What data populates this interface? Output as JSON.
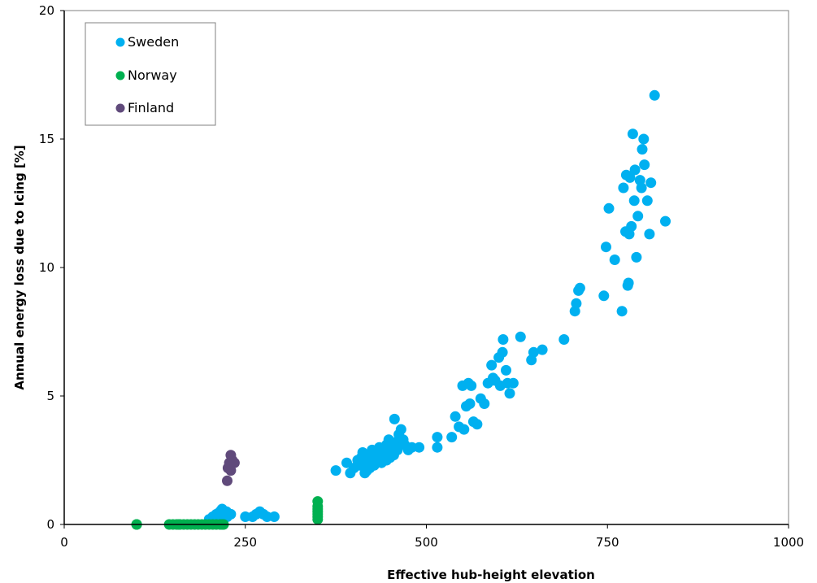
{
  "chart_data": {
    "type": "scatter",
    "xlabel": "Effective hub-height elevation",
    "ylabel": "Annual energy loss due to Icing [%]",
    "xlim": [
      0,
      1000
    ],
    "ylim": [
      0,
      20
    ],
    "xticks": [
      0,
      250,
      500,
      750,
      1000
    ],
    "yticks": [
      0,
      5,
      10,
      15,
      20
    ],
    "grid": false,
    "legend": "top-left",
    "series": [
      {
        "name": "Sweden",
        "color": "#00b0f0",
        "points": [
          [
            200,
            0.2
          ],
          [
            205,
            0.3
          ],
          [
            210,
            0.4
          ],
          [
            215,
            0.5
          ],
          [
            220,
            0.4
          ],
          [
            225,
            0.3
          ],
          [
            230,
            0.4
          ],
          [
            212,
            0.2
          ],
          [
            218,
            0.6
          ],
          [
            224,
            0.5
          ],
          [
            250,
            0.3
          ],
          [
            260,
            0.3
          ],
          [
            270,
            0.5
          ],
          [
            275,
            0.4
          ],
          [
            280,
            0.3
          ],
          [
            290,
            0.3
          ],
          [
            265,
            0.4
          ],
          [
            375,
            2.1
          ],
          [
            390,
            2.4
          ],
          [
            395,
            2.0
          ],
          [
            400,
            2.2
          ],
          [
            405,
            2.5
          ],
          [
            408,
            2.3
          ],
          [
            410,
            2.6
          ],
          [
            412,
            2.8
          ],
          [
            415,
            2.0
          ],
          [
            418,
            2.4
          ],
          [
            420,
            2.7
          ],
          [
            422,
            2.2
          ],
          [
            425,
            2.5
          ],
          [
            428,
            2.3
          ],
          [
            430,
            2.8
          ],
          [
            432,
            2.6
          ],
          [
            435,
            3.0
          ],
          [
            438,
            2.4
          ],
          [
            440,
            2.7
          ],
          [
            442,
            2.9
          ],
          [
            445,
            3.1
          ],
          [
            448,
            3.3
          ],
          [
            450,
            2.6
          ],
          [
            452,
            2.8
          ],
          [
            455,
            3.0
          ],
          [
            456,
            4.1
          ],
          [
            458,
            3.2
          ],
          [
            460,
            2.9
          ],
          [
            462,
            3.5
          ],
          [
            465,
            3.7
          ],
          [
            468,
            3.3
          ],
          [
            470,
            3.1
          ],
          [
            475,
            2.9
          ],
          [
            480,
            3.0
          ],
          [
            490,
            3.0
          ],
          [
            445,
            2.5
          ],
          [
            435,
            2.6
          ],
          [
            425,
            2.9
          ],
          [
            418,
            2.1
          ],
          [
            455,
            2.7
          ],
          [
            515,
            3.0
          ],
          [
            515,
            3.4
          ],
          [
            535,
            3.4
          ],
          [
            540,
            4.2
          ],
          [
            545,
            3.8
          ],
          [
            550,
            5.4
          ],
          [
            552,
            3.7
          ],
          [
            555,
            4.6
          ],
          [
            558,
            5.5
          ],
          [
            560,
            4.7
          ],
          [
            562,
            5.4
          ],
          [
            565,
            4.0
          ],
          [
            570,
            3.9
          ],
          [
            575,
            4.9
          ],
          [
            580,
            4.7
          ],
          [
            585,
            5.5
          ],
          [
            590,
            6.2
          ],
          [
            592,
            5.7
          ],
          [
            595,
            5.6
          ],
          [
            600,
            6.5
          ],
          [
            602,
            5.4
          ],
          [
            605,
            6.7
          ],
          [
            606,
            7.2
          ],
          [
            610,
            6.0
          ],
          [
            612,
            5.5
          ],
          [
            615,
            5.1
          ],
          [
            620,
            5.5
          ],
          [
            630,
            7.3
          ],
          [
            645,
            6.4
          ],
          [
            648,
            6.7
          ],
          [
            660,
            6.8
          ],
          [
            690,
            7.2
          ],
          [
            705,
            8.3
          ],
          [
            707,
            8.6
          ],
          [
            710,
            9.1
          ],
          [
            712,
            9.2
          ],
          [
            745,
            8.9
          ],
          [
            748,
            10.8
          ],
          [
            752,
            12.3
          ],
          [
            760,
            10.3
          ],
          [
            770,
            8.3
          ],
          [
            772,
            13.1
          ],
          [
            775,
            11.4
          ],
          [
            776,
            13.6
          ],
          [
            778,
            9.3
          ],
          [
            779,
            9.4
          ],
          [
            780,
            11.3
          ],
          [
            781,
            13.5
          ],
          [
            783,
            11.6
          ],
          [
            785,
            15.2
          ],
          [
            787,
            12.6
          ],
          [
            788,
            13.8
          ],
          [
            790,
            10.4
          ],
          [
            792,
            12.0
          ],
          [
            795,
            13.4
          ],
          [
            797,
            13.1
          ],
          [
            798,
            14.6
          ],
          [
            800,
            15.0
          ],
          [
            801,
            14.0
          ],
          [
            805,
            12.6
          ],
          [
            808,
            11.3
          ],
          [
            810,
            13.3
          ],
          [
            815,
            16.7
          ],
          [
            830,
            11.8
          ]
        ]
      },
      {
        "name": "Norway",
        "color": "#00b050",
        "points": [
          [
            100,
            0.0
          ],
          [
            100,
            0.0
          ],
          [
            145,
            0.0
          ],
          [
            150,
            0.0
          ],
          [
            155,
            0.0
          ],
          [
            158,
            0.0
          ],
          [
            160,
            0.0
          ],
          [
            165,
            0.0
          ],
          [
            170,
            0.0
          ],
          [
            175,
            0.0
          ],
          [
            180,
            0.0
          ],
          [
            185,
            0.0
          ],
          [
            190,
            0.0
          ],
          [
            195,
            0.0
          ],
          [
            200,
            0.0
          ],
          [
            205,
            0.0
          ],
          [
            210,
            0.0
          ],
          [
            215,
            0.0
          ],
          [
            218,
            0.0
          ],
          [
            220,
            0.0
          ],
          [
            350,
            0.2
          ],
          [
            350,
            0.3
          ],
          [
            350,
            0.4
          ],
          [
            350,
            0.5
          ],
          [
            350,
            0.6
          ],
          [
            350,
            0.7
          ],
          [
            350,
            0.9
          ]
        ]
      },
      {
        "name": "Finland",
        "color": "#604a7b",
        "points": [
          [
            225,
            1.7
          ],
          [
            226,
            2.2
          ],
          [
            228,
            2.4
          ],
          [
            230,
            2.1
          ],
          [
            230,
            2.7
          ],
          [
            232,
            2.5
          ],
          [
            235,
            2.4
          ]
        ]
      }
    ]
  }
}
